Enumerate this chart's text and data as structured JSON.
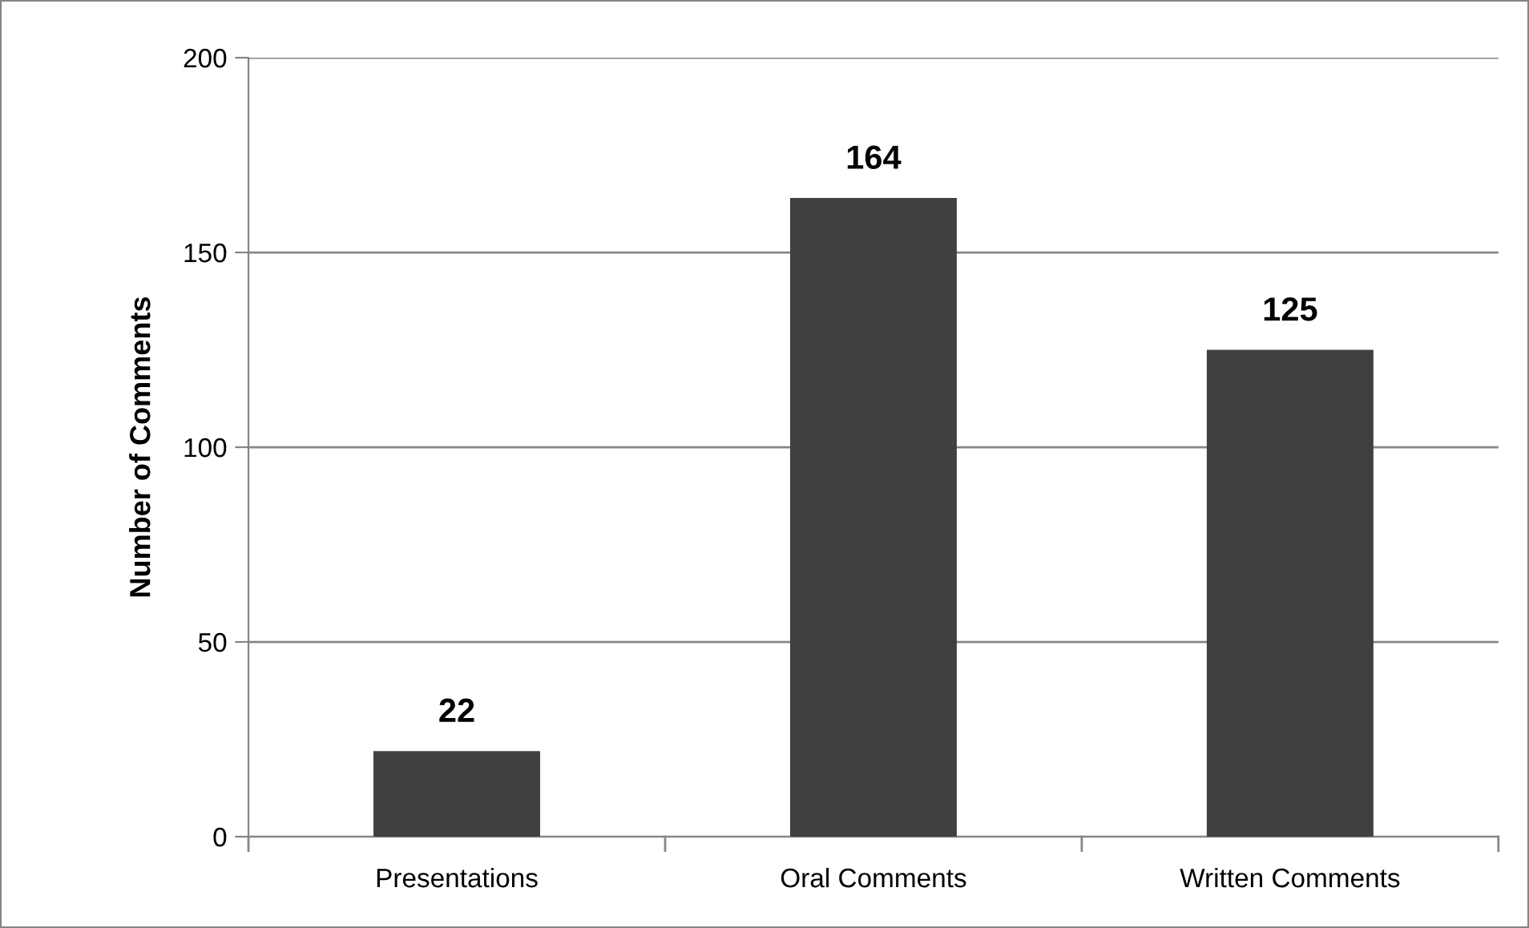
{
  "chart_data": {
    "type": "bar",
    "ylabel": "Number of Comments",
    "categories": [
      "Presentations",
      "Oral Comments",
      "Written Comments"
    ],
    "values": [
      22,
      164,
      125
    ],
    "color": "#404040",
    "ylim": [
      0,
      200
    ],
    "yticks": [
      0,
      50,
      100,
      150,
      200
    ],
    "grid": "y",
    "data_labels": true,
    "legend": false
  }
}
